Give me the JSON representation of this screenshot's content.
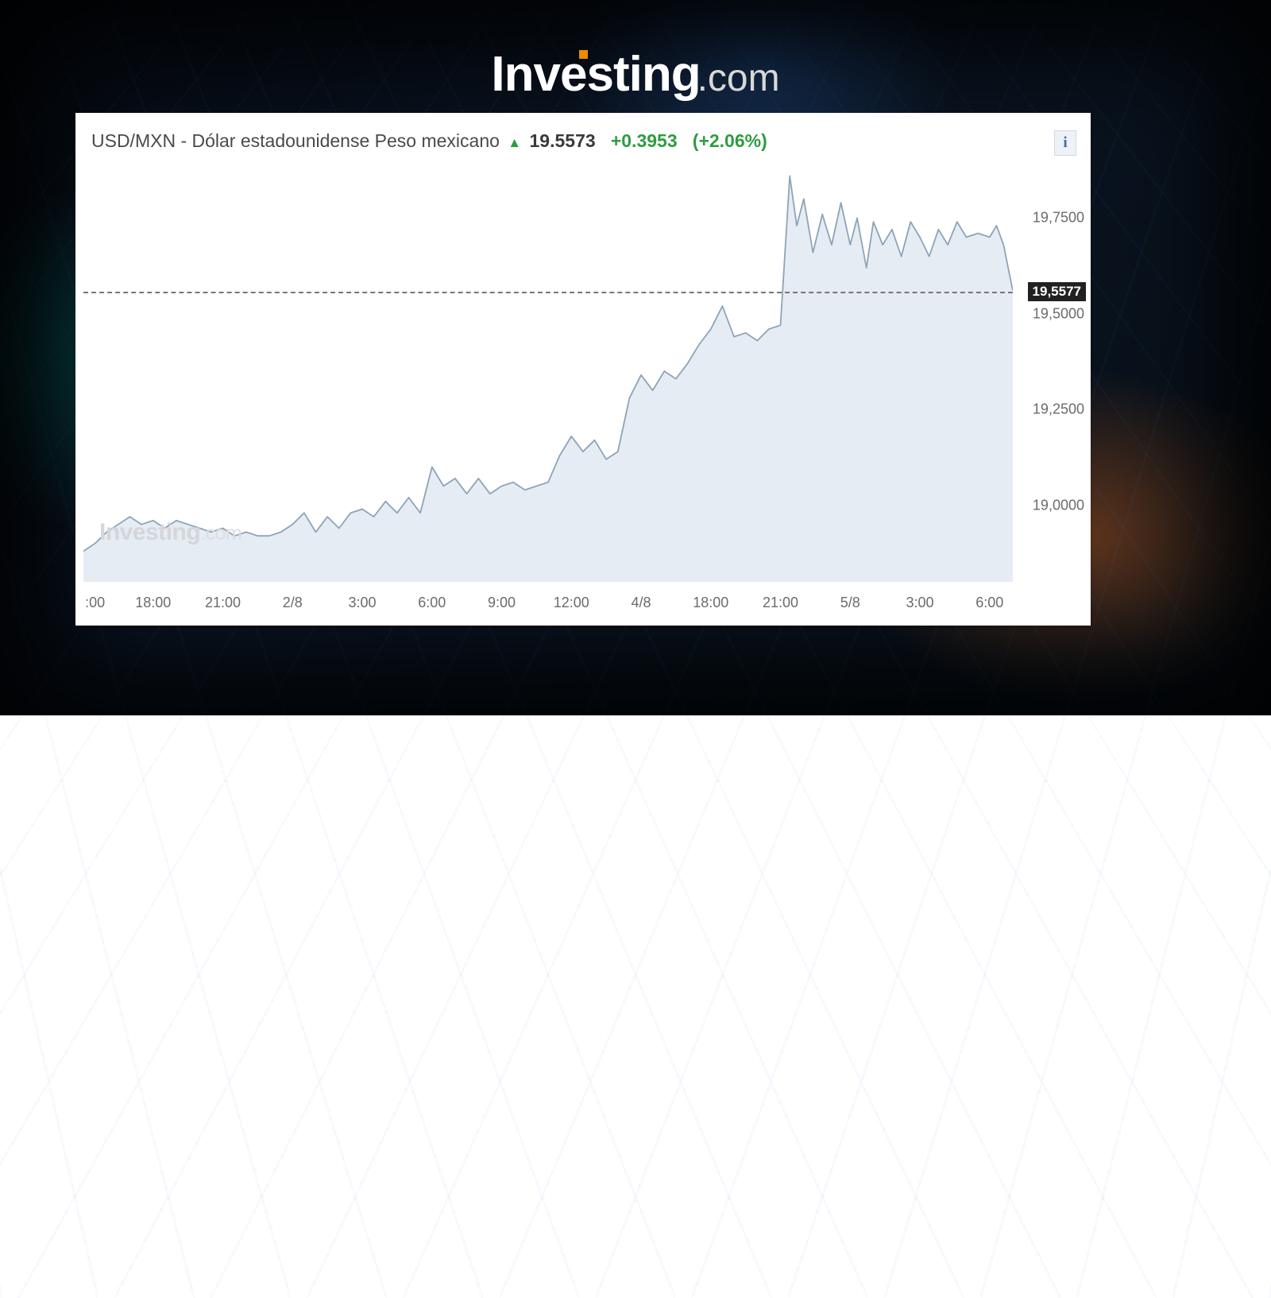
{
  "brand": {
    "name": "Investing",
    "suffix": ".com",
    "accent_color": "#ec8b00",
    "text_color": "#ffffff",
    "suffix_color": "#d8d8d8"
  },
  "header": {
    "pair": "USD/MXN - Dólar estadounidense Peso mexicano",
    "arrow": "▲",
    "price": "19.5573",
    "change": "+0.3953",
    "change_pct": "(+2.06%)",
    "positive_color": "#2e9c40",
    "info_label": "i",
    "info_color": "#3b6ea5",
    "title_fontsize": 23
  },
  "chart": {
    "type": "area",
    "line_color": "#8ea4b8",
    "fill_color": "#e5ecf3",
    "background_color": "#ffffff",
    "line_width": 1.8,
    "ymin": 18.8,
    "ymax": 19.9,
    "current_value": 19.5577,
    "current_label": "19,5577",
    "ref_line_color": "#777777",
    "ref_dash": "6,5",
    "y_ticks": [
      {
        "v": 19.75,
        "label": "19,7500"
      },
      {
        "v": 19.5,
        "label": "19,5000"
      },
      {
        "v": 19.25,
        "label": "19,2500"
      },
      {
        "v": 19.0,
        "label": "19,0000"
      }
    ],
    "x_ticks": [
      {
        "t": 0.5,
        "label": ":00"
      },
      {
        "t": 3,
        "label": "18:00"
      },
      {
        "t": 6,
        "label": "21:00"
      },
      {
        "t": 9,
        "label": "2/8"
      },
      {
        "t": 12,
        "label": "3:00"
      },
      {
        "t": 15,
        "label": "6:00"
      },
      {
        "t": 18,
        "label": "9:00"
      },
      {
        "t": 21,
        "label": "12:00"
      },
      {
        "t": 24,
        "label": "4/8"
      },
      {
        "t": 27,
        "label": "18:00"
      },
      {
        "t": 30,
        "label": "21:00"
      },
      {
        "t": 33,
        "label": "5/8"
      },
      {
        "t": 36,
        "label": "3:00"
      },
      {
        "t": 39,
        "label": "6:00"
      }
    ],
    "xmax": 40,
    "series": [
      [
        0,
        18.88
      ],
      [
        0.5,
        18.9
      ],
      [
        1,
        18.93
      ],
      [
        1.5,
        18.95
      ],
      [
        2,
        18.97
      ],
      [
        2.5,
        18.95
      ],
      [
        3,
        18.96
      ],
      [
        3.5,
        18.94
      ],
      [
        4,
        18.96
      ],
      [
        4.5,
        18.95
      ],
      [
        5,
        18.94
      ],
      [
        5.5,
        18.93
      ],
      [
        6,
        18.94
      ],
      [
        6.5,
        18.92
      ],
      [
        7,
        18.93
      ],
      [
        7.5,
        18.92
      ],
      [
        8,
        18.92
      ],
      [
        8.5,
        18.93
      ],
      [
        9,
        18.95
      ],
      [
        9.5,
        18.98
      ],
      [
        10,
        18.93
      ],
      [
        10.5,
        18.97
      ],
      [
        11,
        18.94
      ],
      [
        11.5,
        18.98
      ],
      [
        12,
        18.99
      ],
      [
        12.5,
        18.97
      ],
      [
        13,
        19.01
      ],
      [
        13.5,
        18.98
      ],
      [
        14,
        19.02
      ],
      [
        14.5,
        18.98
      ],
      [
        15,
        19.1
      ],
      [
        15.5,
        19.05
      ],
      [
        16,
        19.07
      ],
      [
        16.5,
        19.03
      ],
      [
        17,
        19.07
      ],
      [
        17.5,
        19.03
      ],
      [
        18,
        19.05
      ],
      [
        18.5,
        19.06
      ],
      [
        19,
        19.04
      ],
      [
        19.5,
        19.05
      ],
      [
        20,
        19.06
      ],
      [
        20.5,
        19.13
      ],
      [
        21,
        19.18
      ],
      [
        21.5,
        19.14
      ],
      [
        22,
        19.17
      ],
      [
        22.5,
        19.12
      ],
      [
        23,
        19.14
      ],
      [
        23.5,
        19.28
      ],
      [
        24,
        19.34
      ],
      [
        24.5,
        19.3
      ],
      [
        25,
        19.35
      ],
      [
        25.5,
        19.33
      ],
      [
        26,
        19.37
      ],
      [
        26.5,
        19.42
      ],
      [
        27,
        19.46
      ],
      [
        27.5,
        19.52
      ],
      [
        28,
        19.44
      ],
      [
        28.5,
        19.45
      ],
      [
        29,
        19.43
      ],
      [
        29.5,
        19.46
      ],
      [
        30,
        19.47
      ],
      [
        30.4,
        19.86
      ],
      [
        30.7,
        19.73
      ],
      [
        31,
        19.8
      ],
      [
        31.4,
        19.66
      ],
      [
        31.8,
        19.76
      ],
      [
        32.2,
        19.68
      ],
      [
        32.6,
        19.79
      ],
      [
        33,
        19.68
      ],
      [
        33.3,
        19.75
      ],
      [
        33.7,
        19.62
      ],
      [
        34,
        19.74
      ],
      [
        34.4,
        19.68
      ],
      [
        34.8,
        19.72
      ],
      [
        35.2,
        19.65
      ],
      [
        35.6,
        19.74
      ],
      [
        36,
        19.7
      ],
      [
        36.4,
        19.65
      ],
      [
        36.8,
        19.72
      ],
      [
        37.2,
        19.68
      ],
      [
        37.6,
        19.74
      ],
      [
        38,
        19.7
      ],
      [
        38.5,
        19.71
      ],
      [
        39,
        19.7
      ],
      [
        39.3,
        19.73
      ],
      [
        39.6,
        19.68
      ],
      [
        40,
        19.56
      ]
    ],
    "watermark": {
      "text": "Investing",
      "suffix": ".com",
      "color": "#d4d6da"
    },
    "y_label_fontsize": 18,
    "x_label_fontsize": 18
  }
}
